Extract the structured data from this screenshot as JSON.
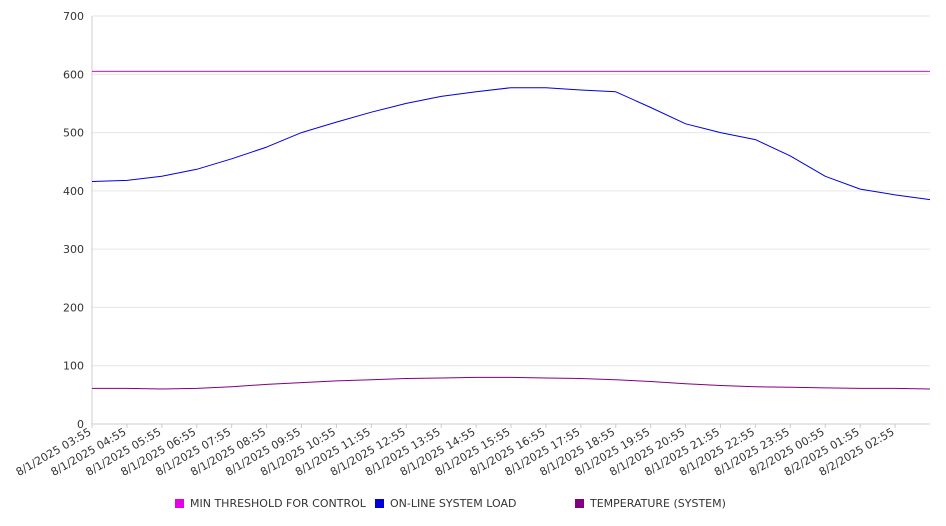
{
  "chart_data": {
    "type": "line",
    "ylim": [
      0,
      700
    ],
    "y_ticks": [
      "0",
      "100",
      "200",
      "300",
      "400",
      "500",
      "600",
      "700"
    ],
    "x_tick_labels": [
      "8/1/2025 03:55",
      "8/1/2025 04:55",
      "8/1/2025 05:55",
      "8/1/2025 06:55",
      "8/1/2025 07:55",
      "8/1/2025 08:55",
      "8/1/2025 09:55",
      "8/1/2025 10:55",
      "8/1/2025 11:55",
      "8/1/2025 12:55",
      "8/1/2025 13:55",
      "8/1/2025 14:55",
      "8/1/2025 15:55",
      "8/1/2025 16:55",
      "8/1/2025 17:55",
      "8/1/2025 18:55",
      "8/1/2025 19:55",
      "8/1/2025 20:55",
      "8/1/2025 21:55",
      "8/1/2025 22:55",
      "8/1/2025 23:55",
      "8/2/2025 00:55",
      "8/2/2025 01:55",
      "8/2/2025 02:55"
    ],
    "grid": "horizontal",
    "legend_position": "bottom",
    "series": [
      {
        "name": "MIN THRESHOLD FOR CONTROL",
        "color": "#e600e6",
        "values": [
          605,
          605,
          605,
          605,
          605,
          605,
          605,
          605,
          605,
          605,
          605,
          605,
          605,
          605,
          605,
          605,
          605,
          605,
          605,
          605,
          605,
          605,
          605,
          605,
          605
        ]
      },
      {
        "name": "ON-LINE SYSTEM LOAD",
        "color": "#0000dd",
        "values": [
          416,
          418,
          425,
          437,
          455,
          475,
          500,
          518,
          535,
          550,
          562,
          570,
          577,
          577,
          573,
          570,
          543,
          515,
          500,
          488,
          460,
          425,
          403,
          393,
          385
        ]
      },
      {
        "name": "TEMPERATURE (SYSTEM)",
        "color": "#800080",
        "values": [
          61,
          61,
          60,
          61,
          64,
          68,
          71,
          74,
          76,
          78,
          79,
          80,
          80,
          79,
          78,
          76,
          73,
          69,
          66,
          64,
          63,
          62,
          61,
          61,
          60
        ]
      }
    ]
  }
}
